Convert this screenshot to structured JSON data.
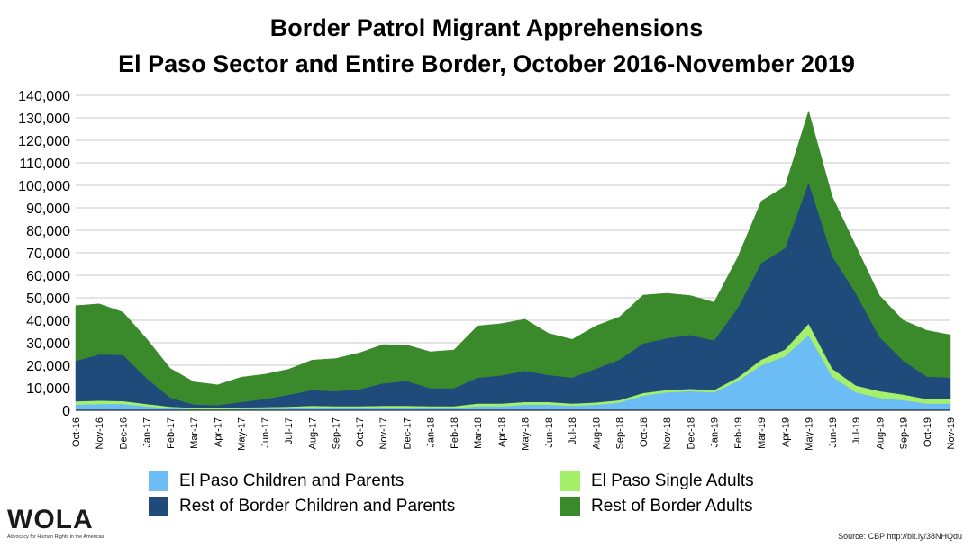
{
  "title_line1": "Border Patrol Migrant Apprehensions",
  "title_line2": "El Paso Sector and Entire Border, October 2016-November 2019",
  "source": "Source: CBP http://bit.ly/38NHQdu",
  "logo": {
    "word": "WOLA",
    "tagline": "Advocacy for Human Rights in the Americas"
  },
  "chart_data": {
    "type": "area",
    "stacked": true,
    "ylim": [
      0,
      140000
    ],
    "yticks": [
      0,
      10000,
      20000,
      30000,
      40000,
      50000,
      60000,
      70000,
      80000,
      90000,
      100000,
      110000,
      120000,
      130000,
      140000
    ],
    "ytick_labels": [
      "0",
      "10,000",
      "20,000",
      "30,000",
      "40,000",
      "50,000",
      "60,000",
      "70,000",
      "80,000",
      "90,000",
      "100,000",
      "110,000",
      "120,000",
      "130,000",
      "140,000"
    ],
    "grid": true,
    "legend_position": "bottom",
    "categories": [
      "Oct-16",
      "Nov-16",
      "Dec-16",
      "Jan-17",
      "Feb-17",
      "Mar-17",
      "Apr-17",
      "May-17",
      "Jun-17",
      "Jul-17",
      "Aug-17",
      "Sep-17",
      "Oct-17",
      "Nov-17",
      "Dec-17",
      "Jan-18",
      "Feb-18",
      "Mar-18",
      "Apr-18",
      "May-18",
      "Jun-18",
      "Jul-18",
      "Aug-18",
      "Sep-18",
      "Oct-18",
      "Nov-18",
      "Dec-18",
      "Jan-19",
      "Feb-19",
      "Mar-19",
      "Apr-19",
      "May-19",
      "Jun-19",
      "Jul-19",
      "Aug-19",
      "Sep-19",
      "Oct-19",
      "Nov-19"
    ],
    "series": [
      {
        "name": "El Paso Children and Parents",
        "color": "#6cbcf5",
        "values": [
          2500,
          2800,
          2800,
          1800,
          800,
          500,
          400,
          600,
          700,
          800,
          1200,
          1000,
          1000,
          1200,
          1200,
          1000,
          1000,
          1800,
          1800,
          2500,
          2500,
          2000,
          2500,
          3500,
          6500,
          8000,
          8500,
          8000,
          13000,
          20000,
          24000,
          33500,
          15000,
          8000,
          5500,
          4500,
          3000,
          3000
        ]
      },
      {
        "name": "El Paso Single Adults",
        "color": "#a5f06b",
        "values": [
          1500,
          1500,
          1300,
          1000,
          800,
          600,
          600,
          700,
          700,
          800,
          800,
          800,
          800,
          800,
          800,
          800,
          800,
          1200,
          1200,
          1200,
          1200,
          1000,
          1000,
          1000,
          1200,
          1000,
          1000,
          1000,
          1500,
          2500,
          3000,
          5000,
          3500,
          3000,
          3000,
          2500,
          2000,
          2000
        ]
      },
      {
        "name": "Rest of Border Children and Parents",
        "color": "#1e4b7a",
        "values": [
          18000,
          20500,
          20500,
          11500,
          4000,
          1500,
          1300,
          2400,
          3600,
          5300,
          7000,
          6700,
          7500,
          10000,
          11000,
          8000,
          8000,
          11500,
          12500,
          13800,
          12000,
          11500,
          15000,
          18000,
          22000,
          23000,
          24000,
          22000,
          31000,
          43000,
          45000,
          63000,
          50000,
          41000,
          24000,
          15000,
          10000,
          9500
        ]
      },
      {
        "name": "Rest of Border Adults",
        "color": "#3a8a2c",
        "values": [
          24500,
          22500,
          19000,
          17500,
          13000,
          10000,
          9000,
          11000,
          11000,
          11300,
          13300,
          14500,
          16200,
          17200,
          16000,
          16200,
          17000,
          23000,
          23000,
          23000,
          18500,
          17000,
          19000,
          19000,
          21500,
          20000,
          17500,
          17000,
          22500,
          27500,
          27500,
          31500,
          26500,
          21000,
          18500,
          18000,
          20500,
          19000
        ]
      }
    ]
  }
}
